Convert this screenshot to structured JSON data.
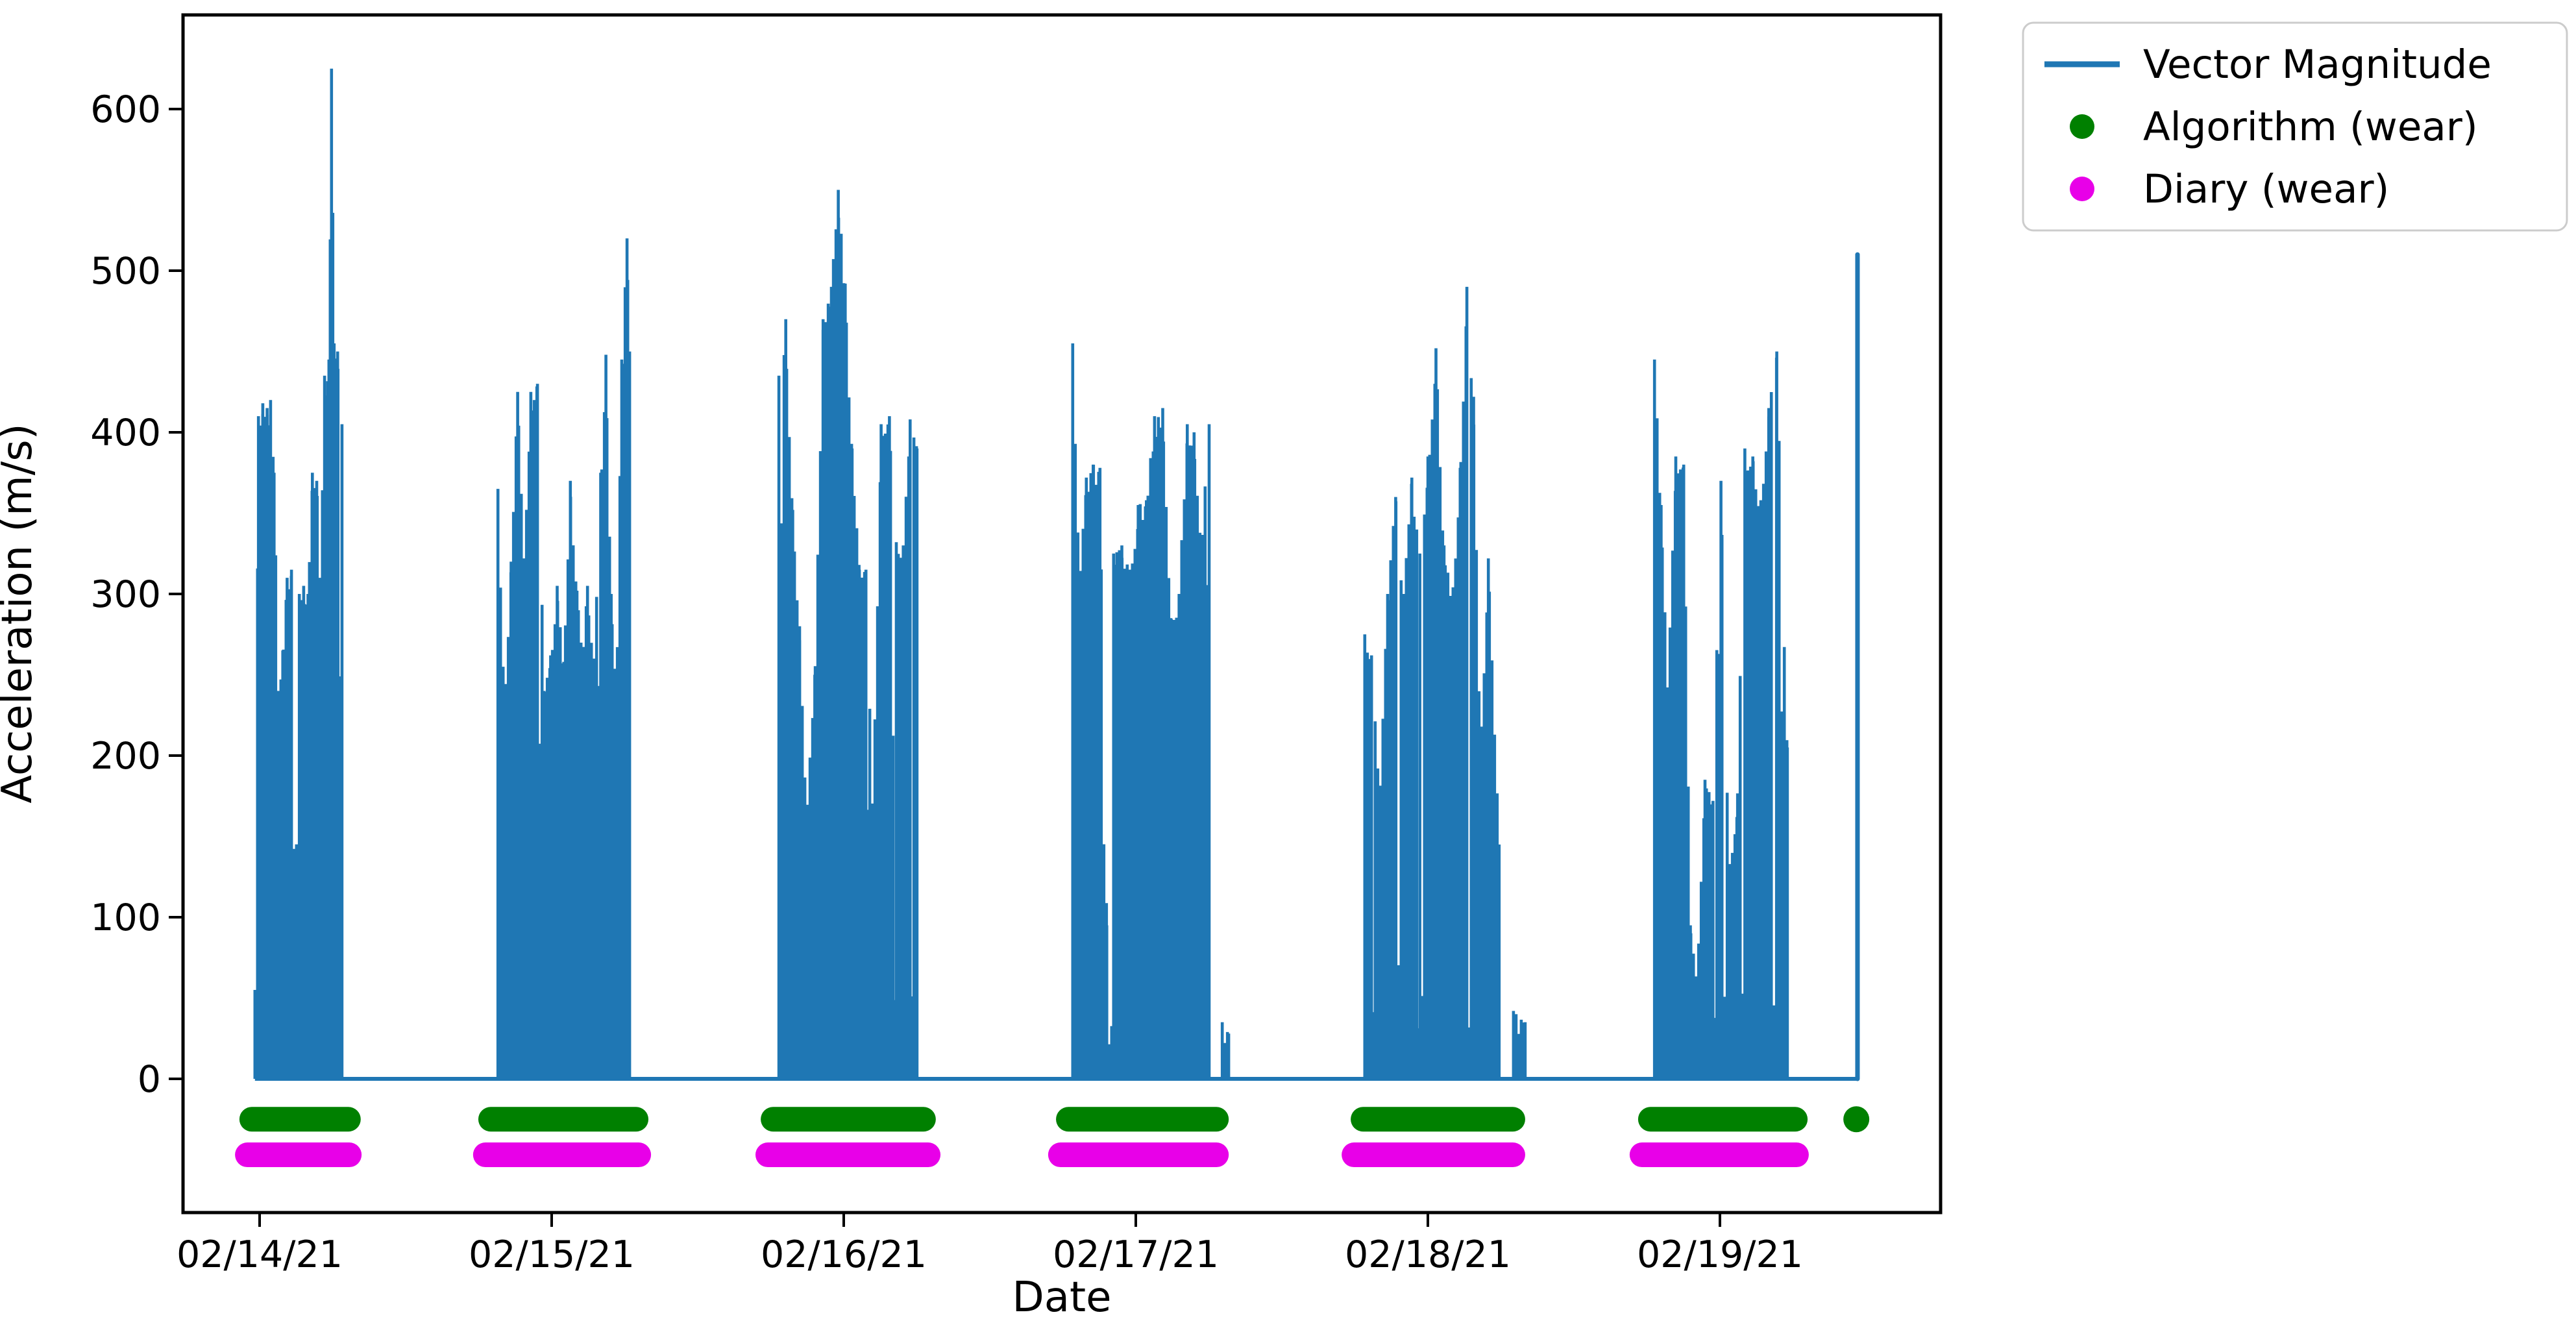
{
  "colors": {
    "vector_magnitude": "#1f77b4",
    "algorithm_wear": "#008000",
    "diary_wear": "#e800e8",
    "axis": "#000000",
    "text": "#000000",
    "legend_border": "#cccccc",
    "legend_background": "#ffffff",
    "figure_background": "#ffffff"
  },
  "legend": {
    "items": [
      {
        "label": "Vector Magnitude",
        "marker": "line"
      },
      {
        "label": "Algorithm (wear)",
        "marker": "dot"
      },
      {
        "label": "Diary (wear)",
        "marker": "dot"
      }
    ]
  },
  "chart_data": {
    "type": "line",
    "title": "",
    "xlabel": "Date",
    "ylabel": "Acceleration (m/s)",
    "x_tick_labels": [
      "02/14/21",
      "02/15/21",
      "02/16/21",
      "02/17/21",
      "02/18/21",
      "02/19/21"
    ],
    "y_ticks": [
      0,
      100,
      200,
      300,
      400,
      500,
      600
    ],
    "ylim": [
      -83,
      658
    ],
    "xlim_days": [
      -0.262,
      5.756
    ],
    "grid": false,
    "legend_position": "outside-upper-right",
    "series": [
      {
        "name": "Vector Magnitude",
        "style": "line",
        "color_key": "vector_magnitude",
        "baseline_value": 0,
        "data_start_day": -0.016,
        "data_end_day": 5.471,
        "activity_clusters": [
          {
            "date": "02/14/21",
            "start_day": -0.016,
            "end_day": 0.282,
            "peak": 625,
            "envelope": [
              [
                0,
                55
              ],
              [
                0.04,
                410
              ],
              [
                0.09,
                418
              ],
              [
                0.14,
                415
              ],
              [
                0.18,
                420
              ],
              [
                0.22,
                375
              ],
              [
                0.27,
                240
              ],
              [
                0.32,
                265
              ],
              [
                0.37,
                310
              ],
              [
                0.42,
                315
              ],
              [
                0.46,
                65
              ],
              [
                0.51,
                300
              ],
              [
                0.56,
                305
              ],
              [
                0.61,
                300
              ],
              [
                0.66,
                375
              ],
              [
                0.71,
                370
              ],
              [
                0.75,
                310
              ],
              [
                0.8,
                435
              ],
              [
                0.85,
                445
              ],
              [
                0.88,
                625
              ],
              [
                0.91,
                455
              ],
              [
                0.95,
                450
              ],
              [
                1,
                405
              ]
            ]
          },
          {
            "date": "02/15/21",
            "start_day": 0.816,
            "end_day": 1.267,
            "peak": 520,
            "envelope": [
              [
                0,
                365
              ],
              [
                0.05,
                230
              ],
              [
                0.1,
                320
              ],
              [
                0.15,
                425
              ],
              [
                0.2,
                322
              ],
              [
                0.25,
                425
              ],
              [
                0.3,
                430
              ],
              [
                0.35,
                240
              ],
              [
                0.4,
                262
              ],
              [
                0.45,
                305
              ],
              [
                0.5,
                258
              ],
              [
                0.55,
                370
              ],
              [
                0.6,
                302
              ],
              [
                0.64,
                262
              ],
              [
                0.68,
                305
              ],
              [
                0.73,
                260
              ],
              [
                0.78,
                375
              ],
              [
                0.82,
                448
              ],
              [
                0.86,
                300
              ],
              [
                0.9,
                240
              ],
              [
                0.94,
                445
              ],
              [
                0.98,
                520
              ],
              [
                1,
                450
              ]
            ]
          },
          {
            "date": "02/16/21",
            "start_day": 1.778,
            "end_day": 2.251,
            "peak": 550,
            "envelope": [
              [
                0,
                435
              ],
              [
                0.05,
                470
              ],
              [
                0.1,
                352
              ],
              [
                0.15,
                280
              ],
              [
                0.2,
                165
              ],
              [
                0.26,
                250
              ],
              [
                0.32,
                470
              ],
              [
                0.38,
                490
              ],
              [
                0.43,
                550
              ],
              [
                0.48,
                492
              ],
              [
                0.53,
                390
              ],
              [
                0.58,
                318
              ],
              [
                0.63,
                315
              ],
              [
                0.68,
                160
              ],
              [
                0.74,
                405
              ],
              [
                0.8,
                410
              ],
              [
                0.85,
                332
              ],
              [
                0.9,
                330
              ],
              [
                0.95,
                408
              ],
              [
                1,
                390
              ]
            ]
          },
          {
            "date": "02/17/21",
            "start_day": 2.784,
            "end_day": 3.251,
            "peak": 455,
            "envelope": [
              [
                0,
                455
              ],
              [
                0.05,
                310
              ],
              [
                0.1,
                372
              ],
              [
                0.15,
                380
              ],
              [
                0.2,
                378
              ],
              [
                0.25,
                95
              ],
              [
                0.3,
                325
              ],
              [
                0.36,
                330
              ],
              [
                0.42,
                315
              ],
              [
                0.48,
                355
              ],
              [
                0.54,
                358
              ],
              [
                0.6,
                410
              ],
              [
                0.66,
                415
              ],
              [
                0.72,
                285
              ],
              [
                0.78,
                300
              ],
              [
                0.84,
                405
              ],
              [
                0.89,
                400
              ],
              [
                0.94,
                335
              ],
              [
                1,
                405
              ]
            ]
          },
          {
            "date": "02/17/21",
            "start_day": 3.296,
            "end_day": 3.318,
            "peak": 35,
            "envelope": [
              [
                0,
                35
              ],
              [
                1,
                28
              ]
            ]
          },
          {
            "date": "02/18/21",
            "start_day": 3.784,
            "end_day": 4.244,
            "peak": 490,
            "envelope": [
              [
                0,
                275
              ],
              [
                0.05,
                262
              ],
              [
                0.11,
                175
              ],
              [
                0.17,
                300
              ],
              [
                0.23,
                360
              ],
              [
                0.29,
                300
              ],
              [
                0.35,
                372
              ],
              [
                0.41,
                325
              ],
              [
                0.47,
                385
              ],
              [
                0.53,
                452
              ],
              [
                0.59,
                330
              ],
              [
                0.65,
                295
              ],
              [
                0.71,
                378
              ],
              [
                0.76,
                490
              ],
              [
                0.81,
                422
              ],
              [
                0.86,
                200
              ],
              [
                0.92,
                322
              ],
              [
                1,
                145
              ]
            ]
          },
          {
            "date": "02/18/21",
            "start_day": 4.293,
            "end_day": 4.333,
            "peak": 42,
            "envelope": [
              [
                0,
                42
              ],
              [
                1,
                35
              ]
            ]
          },
          {
            "date": "02/19/21",
            "start_day": 4.776,
            "end_day": 5.231,
            "peak": 450,
            "envelope": [
              [
                0,
                445
              ],
              [
                0.05,
                355
              ],
              [
                0.1,
                242
              ],
              [
                0.16,
                385
              ],
              [
                0.22,
                380
              ],
              [
                0.27,
                95
              ],
              [
                0.32,
                60
              ],
              [
                0.38,
                185
              ],
              [
                0.44,
                172
              ],
              [
                0.5,
                370
              ],
              [
                0.56,
                130
              ],
              [
                0.62,
                162
              ],
              [
                0.68,
                390
              ],
              [
                0.74,
                385
              ],
              [
                0.8,
                358
              ],
              [
                0.86,
                415
              ],
              [
                0.92,
                450
              ],
              [
                1,
                205
              ]
            ]
          }
        ],
        "final_spike": {
          "day": 5.471,
          "value": 510
        }
      },
      {
        "name": "Algorithm (wear)",
        "style": "dots",
        "color_key": "algorithm_wear",
        "y_value": -25,
        "segments_days": [
          [
            -0.027,
            0.304
          ],
          [
            0.791,
            1.289
          ],
          [
            1.758,
            2.273
          ],
          [
            2.769,
            3.276
          ],
          [
            3.778,
            4.291
          ],
          [
            4.762,
            5.258
          ]
        ],
        "isolated_dots_days": [
          5.467
        ]
      },
      {
        "name": "Diary (wear)",
        "style": "dots",
        "color_key": "diary_wear",
        "y_value": -47,
        "segments_days": [
          [
            -0.042,
            0.307
          ],
          [
            0.773,
            1.298
          ],
          [
            1.74,
            2.289
          ],
          [
            2.742,
            3.276
          ],
          [
            3.747,
            4.291
          ],
          [
            4.733,
            5.262
          ]
        ],
        "isolated_dots_days": []
      }
    ]
  }
}
